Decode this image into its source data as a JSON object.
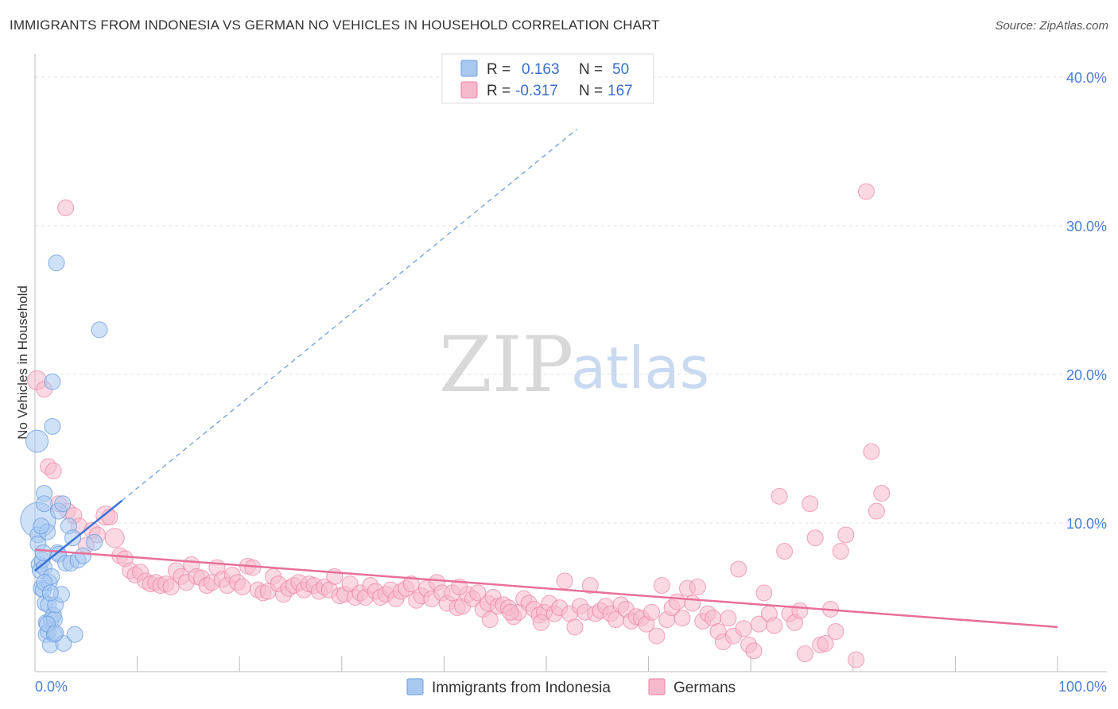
{
  "header": {
    "title": "IMMIGRANTS FROM INDONESIA VS GERMAN NO VEHICLES IN HOUSEHOLD CORRELATION CHART",
    "source": "Source: ZipAtlas.com"
  },
  "watermark": {
    "zip": "ZIP",
    "atlas": "atlas"
  },
  "legend_top": {
    "rows": [
      {
        "r_label": "R =",
        "r_value": "0.163",
        "n_label": "N =",
        "n_value": "50",
        "color": "#a8c8f0"
      },
      {
        "r_label": "R =",
        "r_value": "-0.317",
        "n_label": "N =",
        "n_value": "167",
        "color": "#f6b9cc"
      }
    ]
  },
  "legend_bottom": {
    "items": [
      {
        "label": "Immigrants from Indonesia",
        "color": "#a8c8f0"
      },
      {
        "label": "Germans",
        "color": "#f6b9cc"
      }
    ]
  },
  "chart_data": {
    "type": "scatter",
    "title": "IMMIGRANTS FROM INDONESIA VS GERMAN NO VEHICLES IN HOUSEHOLD CORRELATION CHART",
    "xlabel": "",
    "ylabel": "No Vehicles in Household",
    "xlim": [
      0,
      100
    ],
    "ylim": [
      0,
      42
    ],
    "x_tick_labels": [
      "0.0%",
      "100.0%"
    ],
    "y_ticks": [
      10,
      20,
      30,
      40
    ],
    "y_tick_labels": [
      "10.0%",
      "20.0%",
      "30.0%",
      "40.0%"
    ],
    "grid": true,
    "colors": {
      "blue": "#6d9ee0",
      "blue_fill": "#a8c8f0",
      "pink": "#ec7fa3",
      "pink_fill": "#f6b9cc",
      "axis_text": "#4a7fd4"
    },
    "series": [
      {
        "name": "Immigrants from Indonesia",
        "color": "#6d9ee0",
        "trend": {
          "x": [
            0,
            8.5
          ],
          "y": [
            6.8,
            11.5
          ],
          "dashed_to": [
            53,
            36.5
          ]
        },
        "points": [
          [
            0.2,
            15.5,
            14
          ],
          [
            0.3,
            10.2,
            22
          ],
          [
            0.3,
            9.2,
            10
          ],
          [
            0.3,
            8.6,
            10
          ],
          [
            0.4,
            7.2,
            10
          ],
          [
            0.5,
            6.8,
            10
          ],
          [
            0.6,
            5.6,
            10
          ],
          [
            0.7,
            7.5,
            10
          ],
          [
            0.8,
            5.5,
            10
          ],
          [
            0.9,
            12.0,
            10
          ],
          [
            0.9,
            11.3,
            10
          ],
          [
            0.9,
            7.0,
            10
          ],
          [
            1.0,
            4.6,
            10
          ],
          [
            1.1,
            3.3,
            10
          ],
          [
            1.1,
            2.5,
            10
          ],
          [
            1.2,
            9.4,
            10
          ],
          [
            1.3,
            4.5,
            10
          ],
          [
            1.3,
            2.7,
            10
          ],
          [
            1.4,
            6.0,
            10
          ],
          [
            1.5,
            1.8,
            10
          ],
          [
            1.6,
            6.4,
            10
          ],
          [
            1.6,
            3.5,
            10
          ],
          [
            1.7,
            19.5,
            10
          ],
          [
            1.7,
            16.5,
            10
          ],
          [
            1.8,
            3.8,
            10
          ],
          [
            1.9,
            2.5,
            10
          ],
          [
            1.9,
            3.5,
            10
          ],
          [
            2.0,
            4.5,
            10
          ],
          [
            2.1,
            27.5,
            10
          ],
          [
            2.2,
            8.0,
            10
          ],
          [
            2.3,
            10.8,
            10
          ],
          [
            2.3,
            7.9,
            10
          ],
          [
            2.6,
            5.2,
            10
          ],
          [
            2.7,
            11.3,
            10
          ],
          [
            2.8,
            1.9,
            10
          ],
          [
            3.0,
            7.3,
            10
          ],
          [
            3.3,
            9.8,
            10
          ],
          [
            3.5,
            7.3,
            10
          ],
          [
            3.9,
            2.5,
            10
          ],
          [
            4.2,
            7.5,
            10
          ],
          [
            4.7,
            7.8,
            10
          ],
          [
            5.8,
            8.7,
            10
          ],
          [
            6.3,
            23.0,
            10
          ],
          [
            1.2,
            3.2,
            10
          ],
          [
            0.9,
            6.0,
            10
          ],
          [
            0.6,
            9.8,
            10
          ],
          [
            1.5,
            5.3,
            10
          ],
          [
            2.0,
            2.6,
            10
          ],
          [
            0.8,
            8.0,
            10
          ],
          [
            3.7,
            9.0,
            10
          ]
        ]
      },
      {
        "name": "Germans",
        "color": "#ec7fa3",
        "trend": {
          "x": [
            0,
            100
          ],
          "y": [
            8.2,
            3.0
          ]
        },
        "points": [
          [
            0.2,
            19.6,
            12
          ],
          [
            0.9,
            19.0,
            10
          ],
          [
            1.3,
            13.8,
            10
          ],
          [
            1.8,
            13.5,
            10
          ],
          [
            2.3,
            11.3,
            10
          ],
          [
            3.0,
            31.2,
            10
          ],
          [
            3.2,
            10.8,
            10
          ],
          [
            3.8,
            10.5,
            10
          ],
          [
            4.3,
            9.8,
            10
          ],
          [
            5.0,
            8.5,
            10
          ],
          [
            5.6,
            9.5,
            10
          ],
          [
            6.1,
            9.2,
            10
          ],
          [
            6.9,
            10.5,
            12
          ],
          [
            7.3,
            10.4,
            10
          ],
          [
            7.8,
            9.0,
            12
          ],
          [
            8.3,
            7.8,
            10
          ],
          [
            8.8,
            7.6,
            10
          ],
          [
            9.3,
            6.8,
            10
          ],
          [
            9.8,
            6.5,
            10
          ],
          [
            10.3,
            6.7,
            10
          ],
          [
            10.8,
            6.1,
            10
          ],
          [
            11.3,
            5.9,
            10
          ],
          [
            11.8,
            6.0,
            10
          ],
          [
            12.3,
            5.8,
            10
          ],
          [
            12.8,
            5.9,
            10
          ],
          [
            13.3,
            5.7,
            10
          ],
          [
            13.8,
            6.8,
            10
          ],
          [
            14.3,
            6.4,
            10
          ],
          [
            14.8,
            6.0,
            10
          ],
          [
            15.3,
            7.2,
            10
          ],
          [
            15.8,
            6.4,
            10
          ],
          [
            16.3,
            6.3,
            10
          ],
          [
            16.8,
            5.8,
            10
          ],
          [
            17.3,
            6.0,
            10
          ],
          [
            17.8,
            7.0,
            10
          ],
          [
            18.3,
            6.2,
            10
          ],
          [
            18.8,
            5.8,
            10
          ],
          [
            19.3,
            6.5,
            10
          ],
          [
            19.8,
            6.0,
            10
          ],
          [
            20.3,
            5.7,
            10
          ],
          [
            20.8,
            7.1,
            10
          ],
          [
            21.3,
            7.0,
            10
          ],
          [
            21.8,
            5.5,
            10
          ],
          [
            22.3,
            5.3,
            10
          ],
          [
            22.8,
            5.4,
            10
          ],
          [
            23.3,
            6.4,
            10
          ],
          [
            23.8,
            5.9,
            10
          ],
          [
            24.3,
            5.2,
            10
          ],
          [
            24.8,
            5.6,
            10
          ],
          [
            25.3,
            5.8,
            10
          ],
          [
            25.8,
            6.0,
            10
          ],
          [
            26.3,
            5.5,
            10
          ],
          [
            26.8,
            5.9,
            10
          ],
          [
            27.3,
            5.8,
            10
          ],
          [
            27.8,
            5.4,
            10
          ],
          [
            28.3,
            5.7,
            10
          ],
          [
            28.8,
            5.5,
            10
          ],
          [
            29.3,
            6.4,
            10
          ],
          [
            29.8,
            5.1,
            10
          ],
          [
            30.3,
            5.2,
            10
          ],
          [
            30.8,
            5.9,
            10
          ],
          [
            31.3,
            5.0,
            10
          ],
          [
            31.8,
            5.3,
            10
          ],
          [
            32.3,
            5.0,
            10
          ],
          [
            32.8,
            5.8,
            10
          ],
          [
            33.3,
            5.4,
            10
          ],
          [
            33.8,
            5.0,
            10
          ],
          [
            34.3,
            5.2,
            10
          ],
          [
            34.8,
            5.5,
            10
          ],
          [
            35.3,
            4.9,
            10
          ],
          [
            35.8,
            5.4,
            10
          ],
          [
            36.3,
            5.6,
            10
          ],
          [
            36.8,
            5.9,
            10
          ],
          [
            37.3,
            4.8,
            10
          ],
          [
            37.8,
            5.1,
            10
          ],
          [
            38.3,
            5.6,
            10
          ],
          [
            38.8,
            4.9,
            10
          ],
          [
            39.3,
            6.0,
            10
          ],
          [
            39.8,
            5.3,
            10
          ],
          [
            40.3,
            4.6,
            10
          ],
          [
            40.8,
            5.3,
            10
          ],
          [
            41.3,
            4.3,
            10
          ],
          [
            41.8,
            4.4,
            10
          ],
          [
            42.3,
            5.2,
            10
          ],
          [
            42.8,
            4.9,
            10
          ],
          [
            43.3,
            5.3,
            10
          ],
          [
            43.8,
            4.2,
            10
          ],
          [
            44.3,
            4.6,
            10
          ],
          [
            44.8,
            5.0,
            10
          ],
          [
            45.3,
            4.4,
            10
          ],
          [
            45.8,
            4.5,
            10
          ],
          [
            46.3,
            4.3,
            10
          ],
          [
            46.8,
            3.7,
            10
          ],
          [
            47.3,
            4.0,
            10
          ],
          [
            47.8,
            4.9,
            10
          ],
          [
            48.3,
            4.6,
            10
          ],
          [
            48.8,
            4.2,
            10
          ],
          [
            49.3,
            3.8,
            10
          ],
          [
            49.8,
            4.0,
            10
          ],
          [
            50.3,
            4.6,
            10
          ],
          [
            50.8,
            3.9,
            10
          ],
          [
            51.3,
            4.3,
            10
          ],
          [
            51.8,
            6.1,
            10
          ],
          [
            52.3,
            3.9,
            10
          ],
          [
            52.8,
            3.0,
            10
          ],
          [
            53.3,
            4.4,
            10
          ],
          [
            53.8,
            4.0,
            10
          ],
          [
            54.3,
            5.8,
            10
          ],
          [
            54.8,
            3.9,
            10
          ],
          [
            55.3,
            4.1,
            10
          ],
          [
            55.8,
            4.4,
            10
          ],
          [
            56.3,
            3.9,
            10
          ],
          [
            56.8,
            3.5,
            10
          ],
          [
            57.3,
            4.5,
            10
          ],
          [
            57.8,
            4.2,
            10
          ],
          [
            58.3,
            3.4,
            10
          ],
          [
            58.8,
            3.7,
            10
          ],
          [
            59.3,
            3.6,
            10
          ],
          [
            59.8,
            3.2,
            10
          ],
          [
            60.3,
            4.0,
            10
          ],
          [
            60.8,
            2.4,
            10
          ],
          [
            61.3,
            5.8,
            10
          ],
          [
            61.8,
            3.5,
            10
          ],
          [
            62.3,
            4.3,
            10
          ],
          [
            62.8,
            4.7,
            10
          ],
          [
            63.3,
            3.6,
            10
          ],
          [
            63.8,
            5.6,
            10
          ],
          [
            64.3,
            4.6,
            10
          ],
          [
            64.8,
            5.7,
            10
          ],
          [
            65.3,
            3.4,
            10
          ],
          [
            65.8,
            3.9,
            10
          ],
          [
            66.3,
            3.6,
            10
          ],
          [
            66.8,
            2.7,
            10
          ],
          [
            67.3,
            2.0,
            10
          ],
          [
            67.8,
            3.6,
            10
          ],
          [
            68.3,
            2.4,
            10
          ],
          [
            68.8,
            6.9,
            10
          ],
          [
            69.3,
            2.9,
            10
          ],
          [
            69.8,
            1.8,
            10
          ],
          [
            70.3,
            1.4,
            10
          ],
          [
            70.8,
            3.2,
            10
          ],
          [
            71.3,
            5.3,
            10
          ],
          [
            71.8,
            3.9,
            10
          ],
          [
            72.3,
            3.1,
            10
          ],
          [
            72.8,
            11.8,
            10
          ],
          [
            73.3,
            8.1,
            10
          ],
          [
            73.8,
            3.9,
            10
          ],
          [
            74.3,
            3.3,
            10
          ],
          [
            74.8,
            4.1,
            10
          ],
          [
            75.3,
            1.2,
            10
          ],
          [
            75.8,
            11.3,
            10
          ],
          [
            76.3,
            9.0,
            10
          ],
          [
            76.8,
            1.8,
            10
          ],
          [
            77.3,
            1.9,
            10
          ],
          [
            77.8,
            4.2,
            10
          ],
          [
            78.3,
            2.7,
            10
          ],
          [
            78.8,
            8.1,
            10
          ],
          [
            79.3,
            9.2,
            10
          ],
          [
            80.3,
            0.8,
            10
          ],
          [
            81.3,
            32.3,
            10
          ],
          [
            81.8,
            14.8,
            10
          ],
          [
            82.3,
            10.8,
            10
          ],
          [
            82.8,
            12.0,
            10
          ],
          [
            41.5,
            5.7,
            10
          ],
          [
            44.5,
            3.5,
            10
          ],
          [
            46.5,
            4.0,
            10
          ],
          [
            49.5,
            3.3,
            10
          ]
        ]
      }
    ]
  }
}
